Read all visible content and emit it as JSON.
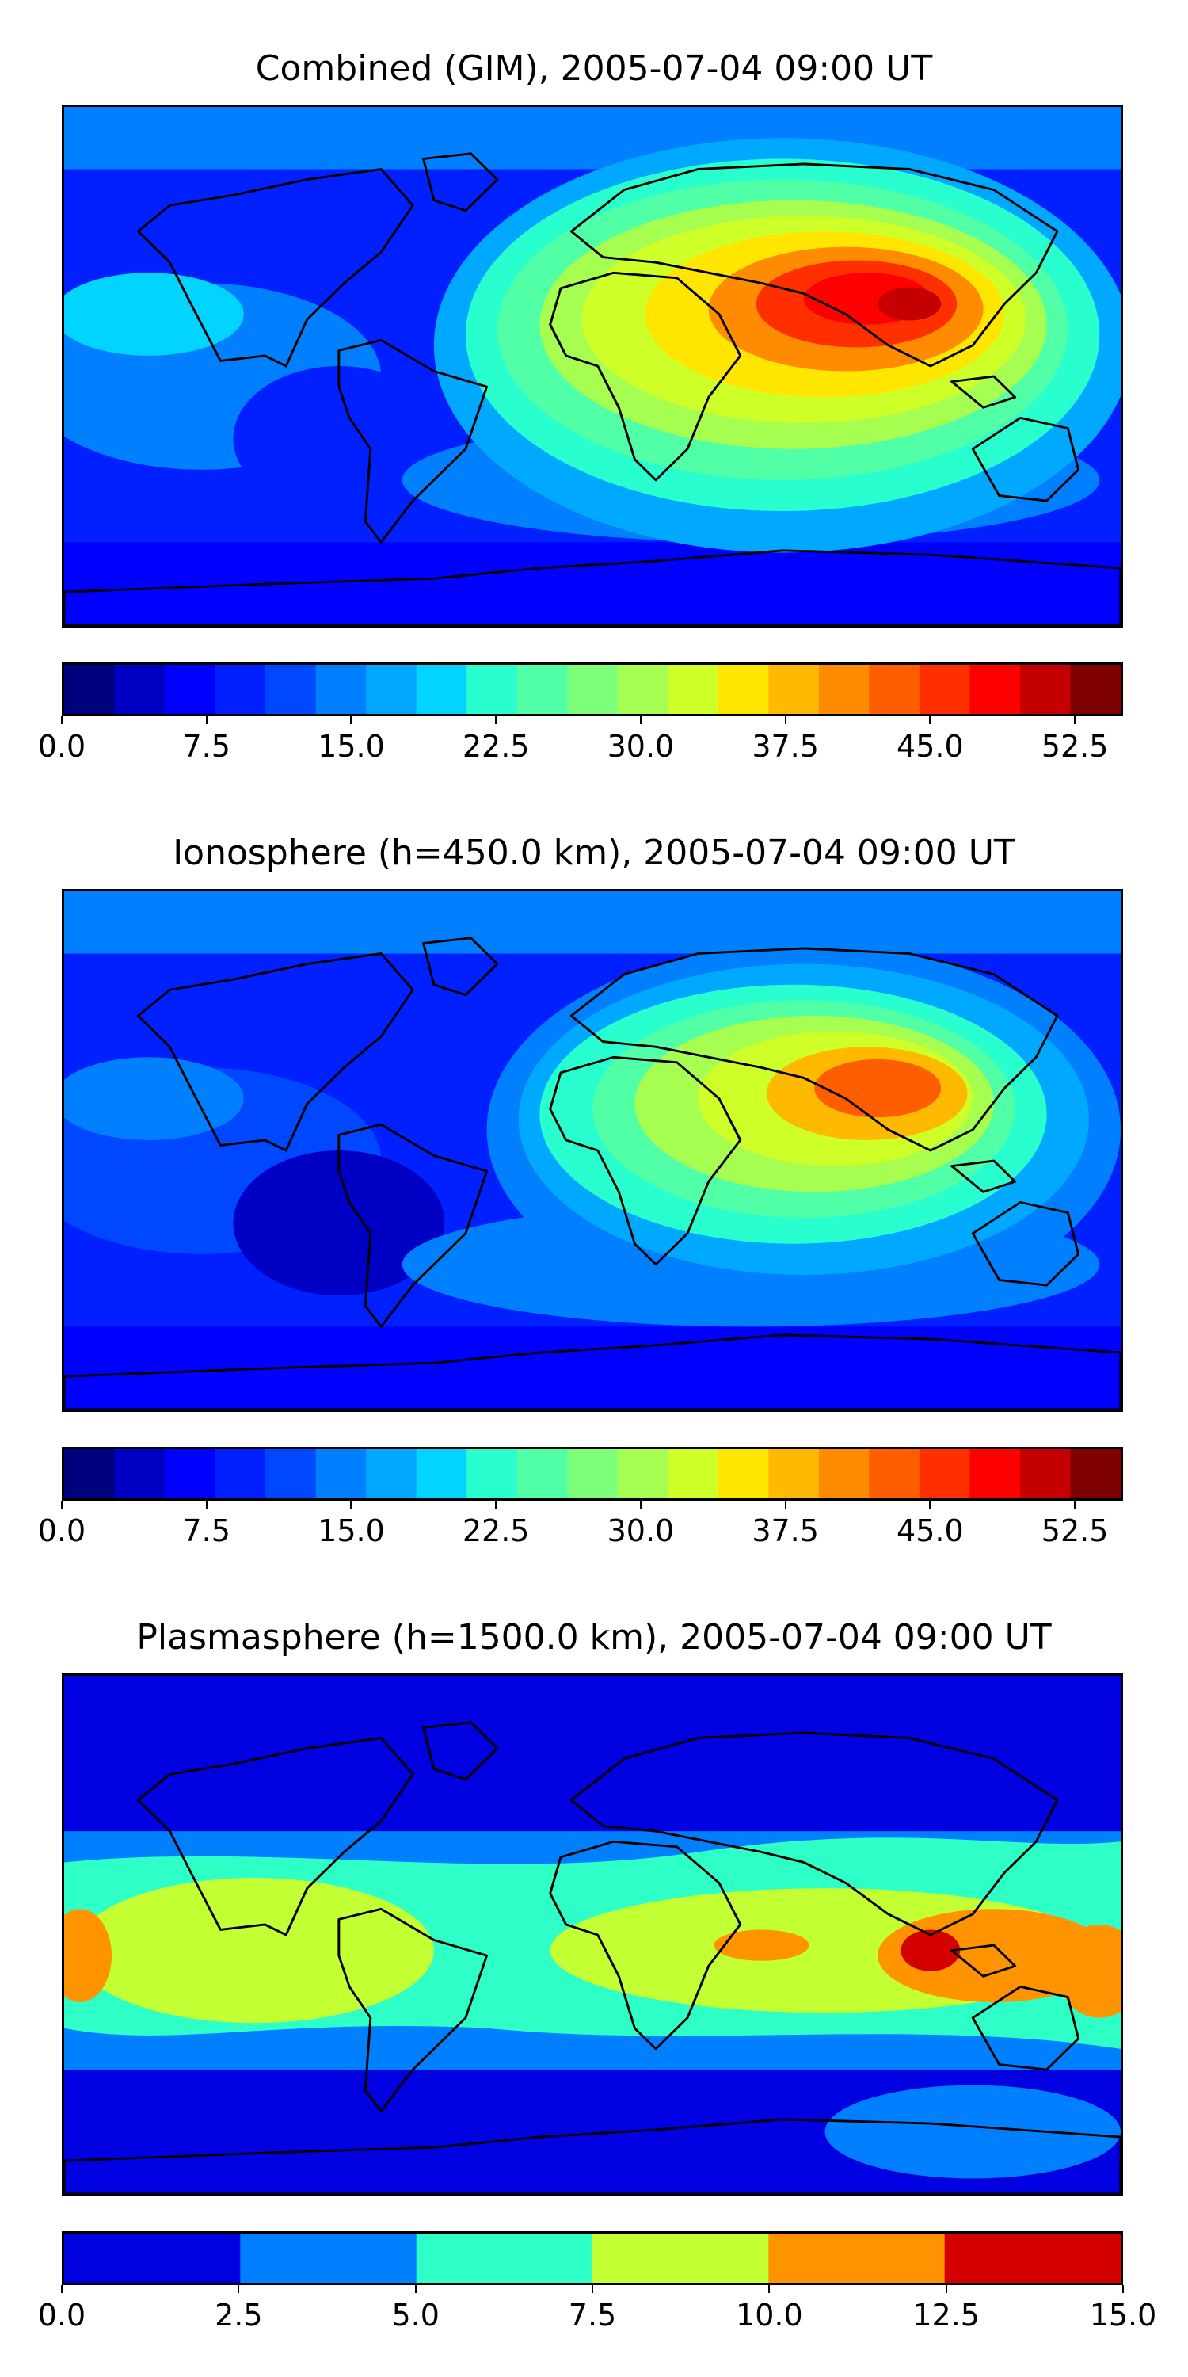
{
  "panels": [
    {
      "title": "Combined (GIM), 2005-07-04 09:00 UT",
      "pattern": "combined",
      "colorbar": {
        "range": [
          0,
          55
        ],
        "levels": [
          "#00007f",
          "#0000c4",
          "#0000ff",
          "#0020ff",
          "#0048ff",
          "#0080ff",
          "#00a8ff",
          "#00d4ff",
          "#29ffce",
          "#50ffa6",
          "#7dff7a",
          "#a6ff50",
          "#ceff29",
          "#ffe600",
          "#ffb900",
          "#ff8c00",
          "#ff5e00",
          "#ff2f00",
          "#ff0000",
          "#c40000",
          "#7f0000"
        ],
        "ticks": [
          "0.0",
          "7.5",
          "15.0",
          "22.5",
          "30.0",
          "37.5",
          "45.0",
          "52.5"
        ],
        "tick_values": [
          0,
          7.5,
          15,
          22.5,
          30,
          37.5,
          45,
          52.5
        ]
      }
    },
    {
      "title": "Ionosphere  (h=450.0 km), 2005-07-04 09:00 UT",
      "pattern": "ionosphere",
      "colorbar": {
        "range": [
          0,
          55
        ],
        "levels": [
          "#00007f",
          "#0000c4",
          "#0000ff",
          "#0020ff",
          "#0048ff",
          "#0080ff",
          "#00a8ff",
          "#00d4ff",
          "#29ffce",
          "#50ffa6",
          "#7dff7a",
          "#a6ff50",
          "#ceff29",
          "#ffe600",
          "#ffb900",
          "#ff8c00",
          "#ff5e00",
          "#ff2f00",
          "#ff0000",
          "#c40000",
          "#7f0000"
        ],
        "ticks": [
          "0.0",
          "7.5",
          "15.0",
          "22.5",
          "30.0",
          "37.5",
          "45.0",
          "52.5"
        ],
        "tick_values": [
          0,
          7.5,
          15,
          22.5,
          30,
          37.5,
          45,
          52.5
        ]
      }
    },
    {
      "title": "Plasmasphere (h=1500.0 km), 2005-07-04 09:00 UT",
      "pattern": "plasmasphere",
      "colorbar": {
        "range": [
          0,
          15
        ],
        "levels": [
          "#0000e0",
          "#0080ff",
          "#2dffc6",
          "#c2ff33",
          "#ff9400",
          "#d40000"
        ],
        "ticks": [
          "0.0",
          "2.5",
          "5.0",
          "7.5",
          "10.0",
          "12.5",
          "15.0"
        ],
        "tick_values": [
          0,
          2.5,
          5,
          7.5,
          10,
          12.5,
          15
        ]
      }
    }
  ]
}
